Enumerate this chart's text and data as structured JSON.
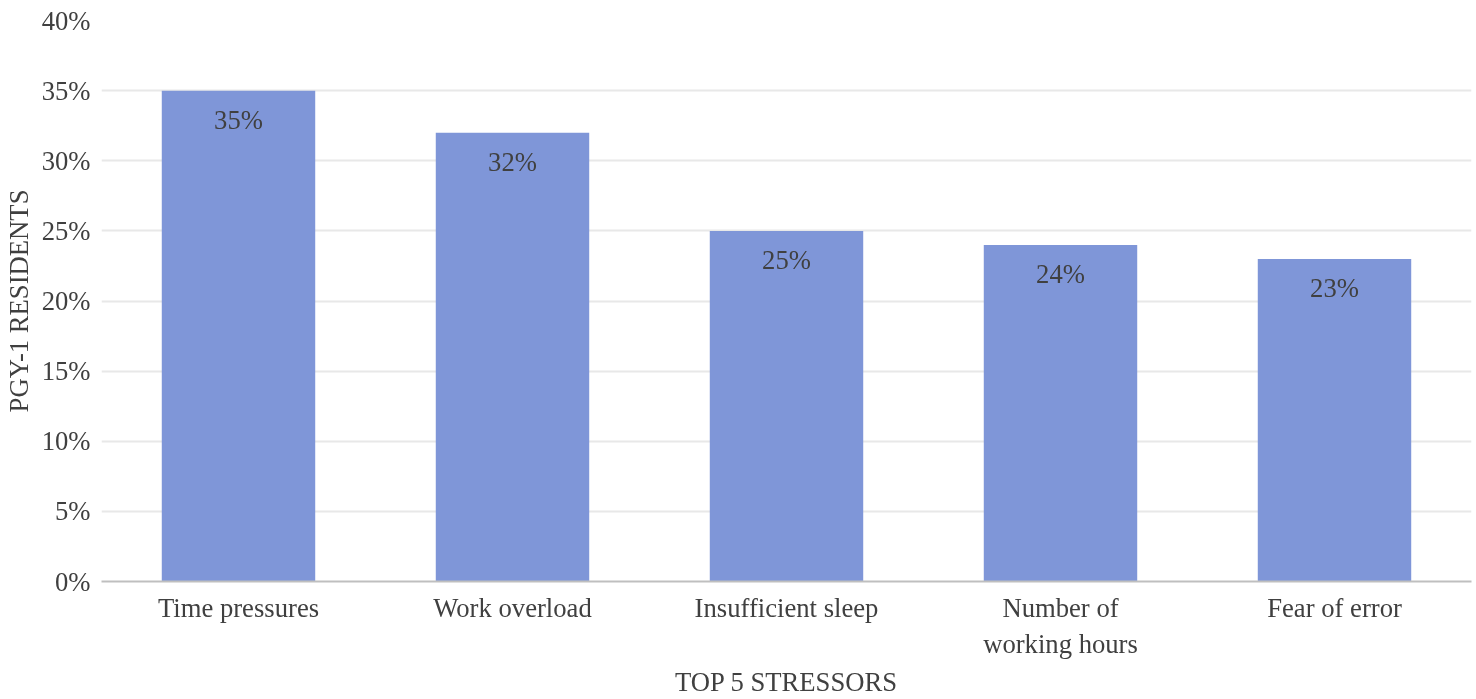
{
  "chart_data": {
    "type": "bar",
    "xlabel": "TOP 5 STRESSORS",
    "ylabel": "PGY-1 RESIDENTS",
    "categories": [
      "Time pressures",
      "Work overload",
      "Insufficient sleep",
      "Number of\nworking hours",
      "Fear of error"
    ],
    "values": [
      35,
      32,
      25,
      24,
      23
    ],
    "color": "#7f96d8",
    "value_labels": [
      "35%",
      "32%",
      "25%",
      "24%",
      "23%"
    ],
    "ylim": [
      0,
      40
    ],
    "yticks": [
      {
        "value": 0,
        "label": "0%"
      },
      {
        "value": 5,
        "label": "5%"
      },
      {
        "value": 10,
        "label": "10%"
      },
      {
        "value": 15,
        "label": "15%"
      },
      {
        "value": 20,
        "label": "20%"
      },
      {
        "value": 25,
        "label": "25%"
      },
      {
        "value": 30,
        "label": "30%"
      },
      {
        "value": 35,
        "label": "35%"
      },
      {
        "value": 40,
        "label": "40%"
      }
    ],
    "grid": "y"
  }
}
